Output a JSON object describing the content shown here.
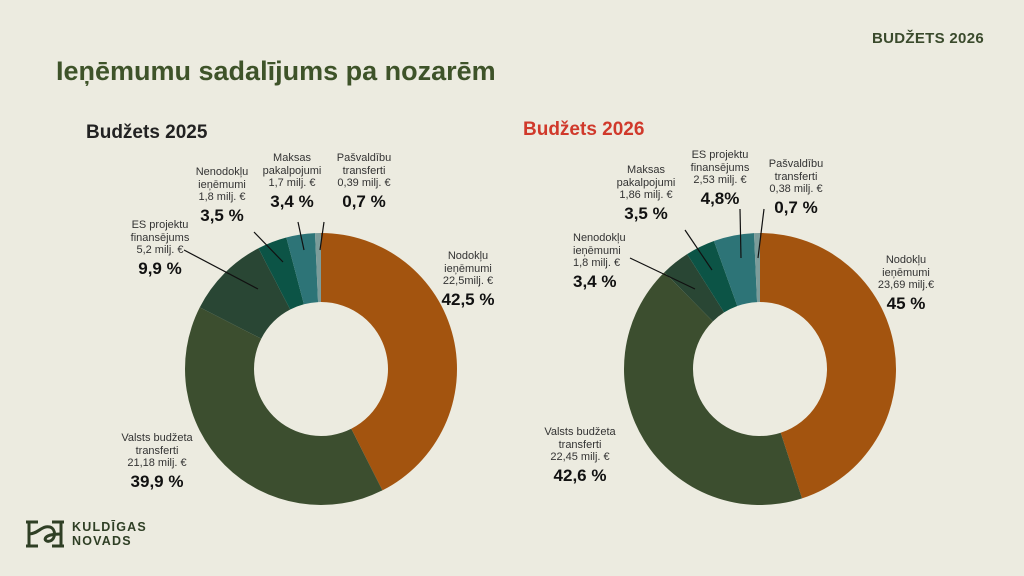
{
  "header": {
    "tag": "BUDŽETS 2026",
    "title": "Ieņēmumu sadalījums pa nozarēm"
  },
  "logo": {
    "line1": "KULDĪGAS",
    "line2": "NOVADS"
  },
  "chart_data": [
    {
      "type": "pie",
      "title": "Budžets 2025",
      "title_color": "#222222",
      "slices": [
        {
          "label": "Nodokļu\nieņēmumi\n22,5milj. €",
          "pct_text": "42,5 %",
          "value": 42.5,
          "color": "#a3540f"
        },
        {
          "label": "Valsts budžeta\ntransferti\n21,18 milj. €",
          "pct_text": "39,9 %",
          "value": 39.9,
          "color": "#3c4e2f"
        },
        {
          "label": "ES projektu\nfinansējums\n5,2 milj. €",
          "pct_text": "9,9 %",
          "value": 9.9,
          "color": "#294634"
        },
        {
          "label": "Nenodokļu\nieņēmumi\n1,8 milj. €",
          "pct_text": "3,5 %",
          "value": 3.5,
          "color": "#0c5446"
        },
        {
          "label": "Maksas\npakalpojumi\n1,7 milj. €",
          "pct_text": "3,4 %",
          "value": 3.4,
          "color": "#2d7477"
        },
        {
          "label": "Pašvaldību\ntransferti\n0,39 milj. €",
          "pct_text": "0,7 %",
          "value": 0.7,
          "color": "#7c9c9a"
        }
      ]
    },
    {
      "type": "pie",
      "title": "Budžets 2026",
      "title_color": "#d0392b",
      "slices": [
        {
          "label": "Nodokļu\nieņēmumi\n23,69 milj.€",
          "pct_text": "45 %",
          "value": 45,
          "color": "#a3540f"
        },
        {
          "label": "Valsts budžeta\ntransferti\n22,45 milj. €",
          "pct_text": "42,6 %",
          "value": 42.6,
          "color": "#3c4e2f"
        },
        {
          "label": "Nenodokļu\nieņēmumi\n1,8 milj. €",
          "pct_text": "3,4 %",
          "value": 3.4,
          "color": "#294634"
        },
        {
          "label": "Maksas\npakalpojumi\n1,86 milj. €",
          "pct_text": "3,5 %",
          "value": 3.5,
          "color": "#0c5446"
        },
        {
          "label": "ES projektu\nfinansējums\n2,53 milj. €",
          "pct_text": "4,8%",
          "value": 4.8,
          "color": "#2d7477"
        },
        {
          "label": "Pašvaldību\ntransferti\n0,38 milj. €",
          "pct_text": "0,7 %",
          "value": 0.7,
          "color": "#7c9c9a"
        }
      ]
    }
  ]
}
